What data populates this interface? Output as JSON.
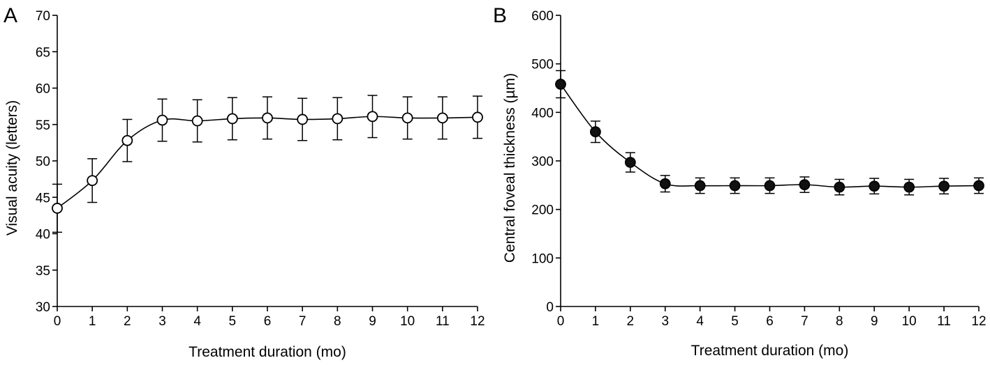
{
  "chart_data": [
    {
      "type": "line",
      "panel": "A",
      "title": "",
      "xlabel": "Treatment duration (mo)",
      "ylabel": "Visual acuity (letters)",
      "x": [
        0,
        1,
        2,
        3,
        4,
        5,
        6,
        7,
        8,
        9,
        10,
        11,
        12
      ],
      "xticks": [
        "0",
        "1",
        "2",
        "3",
        "4",
        "5",
        "6",
        "7",
        "8",
        "9",
        "10",
        "11",
        "12"
      ],
      "yticks": [
        "30",
        "35",
        "40",
        "45",
        "50",
        "55",
        "60",
        "65",
        "70"
      ],
      "xlim": [
        0,
        12
      ],
      "ylim": [
        30,
        70
      ],
      "marker": "open-circle",
      "grid": false,
      "series": [
        {
          "values": [
            43.5,
            47.3,
            52.8,
            55.6,
            55.5,
            55.8,
            55.9,
            55.7,
            55.8,
            56.1,
            55.9,
            55.9,
            56.0
          ],
          "error": [
            3.3,
            3.0,
            2.9,
            2.9,
            2.9,
            2.9,
            2.9,
            2.9,
            2.9,
            2.9,
            2.9,
            2.9,
            2.9
          ]
        }
      ]
    },
    {
      "type": "line",
      "panel": "B",
      "title": "",
      "xlabel": "Treatment duration (mo)",
      "ylabel": "Central foveal thickness (µm)",
      "x": [
        0,
        1,
        2,
        3,
        4,
        5,
        6,
        7,
        8,
        9,
        10,
        11,
        12
      ],
      "xticks": [
        "0",
        "1",
        "2",
        "3",
        "4",
        "5",
        "6",
        "7",
        "8",
        "9",
        "10",
        "11",
        "12"
      ],
      "yticks": [
        "0",
        "100",
        "200",
        "300",
        "400",
        "500",
        "600"
      ],
      "xlim": [
        0,
        12
      ],
      "ylim": [
        0,
        600
      ],
      "marker": "filled-circle",
      "grid": false,
      "series": [
        {
          "values": [
            458,
            360,
            297,
            253,
            249,
            249,
            249,
            251,
            246,
            248,
            246,
            248,
            249
          ],
          "error": [
            28,
            22,
            20,
            17,
            16,
            16,
            16,
            16,
            16,
            16,
            16,
            16,
            16
          ]
        }
      ]
    }
  ]
}
